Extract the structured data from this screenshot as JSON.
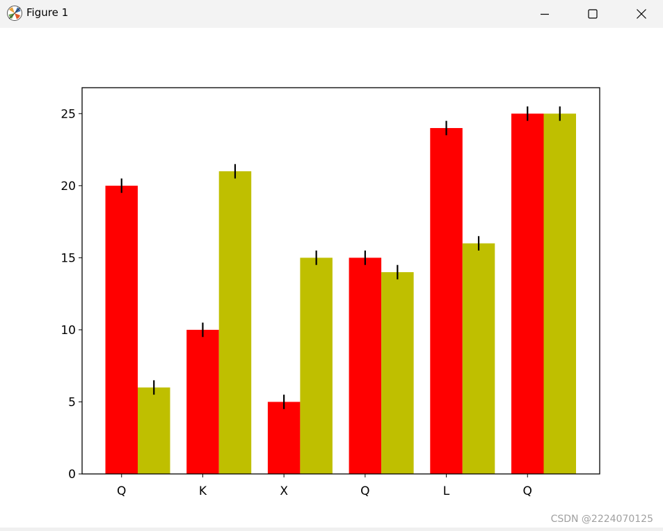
{
  "window": {
    "title": "Figure 1",
    "icon": "matplotlib-icon",
    "controls": [
      "minimize-icon",
      "maximize-icon",
      "close-icon"
    ]
  },
  "watermark": "CSDN @2224070125",
  "chart_data": {
    "type": "bar",
    "categories": [
      "Q",
      "K",
      "X",
      "Q",
      "L",
      "Q"
    ],
    "series": [
      {
        "values": [
          20,
          10,
          5,
          15,
          24,
          25
        ],
        "error": [
          0.5,
          0.5,
          0.5,
          0.5,
          0.5,
          0.5
        ],
        "color": "#ff0000"
      },
      {
        "values": [
          6,
          21,
          15,
          14,
          16,
          25
        ],
        "error": [
          0.5,
          0.5,
          0.5,
          0.5,
          0.5,
          0.5
        ],
        "color": "#bfbf00"
      }
    ],
    "yticks": [
      "0",
      "5",
      "10",
      "15",
      "20",
      "25"
    ],
    "ylim": [
      0,
      26.8
    ],
    "grid": false,
    "legend": "none"
  }
}
